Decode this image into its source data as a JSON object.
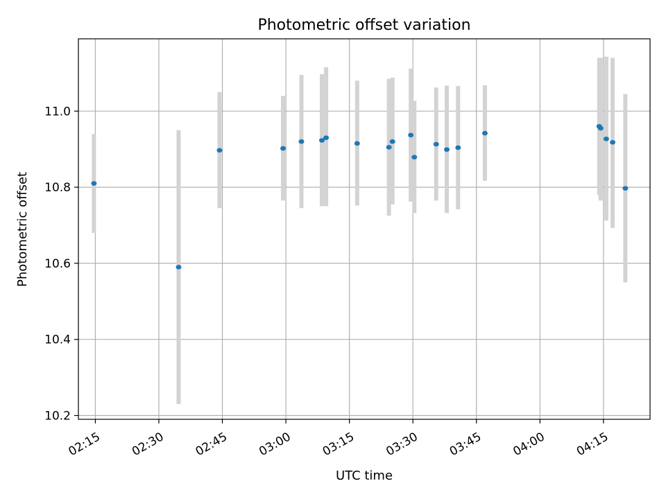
{
  "chart_data": {
    "type": "scatter",
    "title": "Photometric offset variation",
    "xlabel": "UTC time",
    "ylabel": "Photometric offset",
    "x_axis_type": "time",
    "xlim": [
      "02:11",
      "04:26"
    ],
    "ylim": [
      10.19,
      11.19
    ],
    "x_ticks": [
      "02:15",
      "02:30",
      "02:45",
      "03:00",
      "03:15",
      "03:30",
      "03:45",
      "04:00",
      "04:15"
    ],
    "y_ticks": [
      10.2,
      10.4,
      10.6,
      10.8,
      11.0
    ],
    "grid": true,
    "legend": "none",
    "colors": {
      "points": "#1f77b4",
      "error_bars": "#d3d3d3",
      "grid": "#b0b0b0",
      "axes": "#000000"
    },
    "points": [
      {
        "time": "02:14:40",
        "y": 10.81,
        "err_low": 10.68,
        "err_high": 10.94
      },
      {
        "time": "02:34:40",
        "y": 10.59,
        "err_low": 10.23,
        "err_high": 10.95
      },
      {
        "time": "02:44:20",
        "y": 10.897,
        "err_low": 10.745,
        "err_high": 11.05
      },
      {
        "time": "02:59:20",
        "y": 10.902,
        "err_low": 10.765,
        "err_high": 11.04
      },
      {
        "time": "03:03:40",
        "y": 10.92,
        "err_low": 10.745,
        "err_high": 11.095
      },
      {
        "time": "03:08:30",
        "y": 10.923,
        "err_low": 10.75,
        "err_high": 11.097
      },
      {
        "time": "03:09:30",
        "y": 10.93,
        "err_low": 10.75,
        "err_high": 11.115
      },
      {
        "time": "03:16:50",
        "y": 10.915,
        "err_low": 10.752,
        "err_high": 11.08
      },
      {
        "time": "03:24:20",
        "y": 10.905,
        "err_low": 10.725,
        "err_high": 11.085
      },
      {
        "time": "03:25:10",
        "y": 10.92,
        "err_low": 10.755,
        "err_high": 11.088
      },
      {
        "time": "03:29:30",
        "y": 10.937,
        "err_low": 10.762,
        "err_high": 11.112
      },
      {
        "time": "03:30:20",
        "y": 10.879,
        "err_low": 10.732,
        "err_high": 11.027
      },
      {
        "time": "03:35:30",
        "y": 10.913,
        "err_low": 10.765,
        "err_high": 11.062
      },
      {
        "time": "03:38:00",
        "y": 10.899,
        "err_low": 10.732,
        "err_high": 11.067
      },
      {
        "time": "03:40:40",
        "y": 10.904,
        "err_low": 10.742,
        "err_high": 11.066
      },
      {
        "time": "03:47:00",
        "y": 10.942,
        "err_low": 10.817,
        "err_high": 11.068
      },
      {
        "time": "04:14:00",
        "y": 10.96,
        "err_low": 10.78,
        "err_high": 11.14
      },
      {
        "time": "04:14:20",
        "y": 10.955,
        "err_low": 10.765,
        "err_high": 11.14
      },
      {
        "time": "04:15:40",
        "y": 10.927,
        "err_low": 10.712,
        "err_high": 11.143
      },
      {
        "time": "04:17:10",
        "y": 10.918,
        "err_low": 10.693,
        "err_high": 11.14
      },
      {
        "time": "04:20:10",
        "y": 10.797,
        "err_low": 10.55,
        "err_high": 11.045
      }
    ]
  }
}
